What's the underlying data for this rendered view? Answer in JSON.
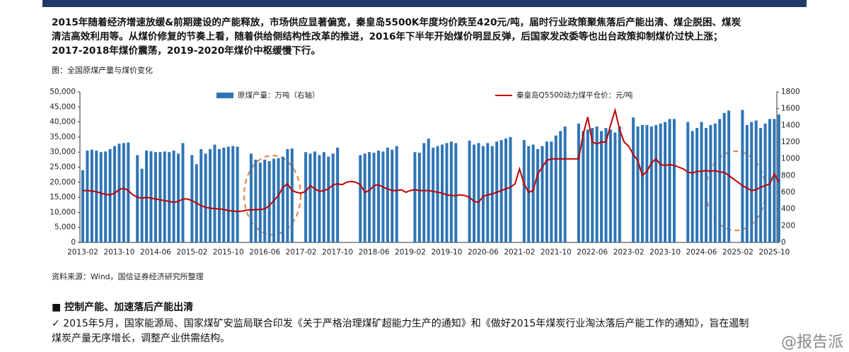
{
  "paragraph": {
    "lines": [
      "2015年随着经济增速放缓&前期建设的产能释放，市场供应显著偏宽，秦皇岛5500K年度均价跌至420元/吨，届时行业政策聚焦落后产能出清、煤企脱困、煤炭",
      "清洁高效利用等。从煤价修复的节奏上看，随着供给侧结构性改革的推进，2016年下半年开始煤价明显反弹，后国家发改委等也出台政策抑制煤价过快上涨；",
      "2017-2018年煤价震荡，2019-2020年煤价中枢缓慢下行。"
    ]
  },
  "figure_caption": "图：全国原煤产量与煤价变化",
  "chart_data": {
    "type": "bar-line",
    "categories": [
      "2013-02",
      null,
      null,
      null,
      null,
      null,
      null,
      null,
      "2013-10",
      null,
      null,
      null,
      null,
      null,
      null,
      null,
      "2014-06",
      null,
      null,
      null,
      null,
      null,
      null,
      null,
      "2015-02",
      null,
      null,
      null,
      null,
      null,
      null,
      null,
      "2015-10",
      null,
      null,
      null,
      null,
      null,
      null,
      null,
      "2016-06",
      null,
      null,
      null,
      null,
      null,
      null,
      null,
      "2017-02",
      null,
      null,
      null,
      null,
      null,
      null,
      null,
      "2017-10",
      null,
      null,
      null,
      null,
      null,
      null,
      null,
      "2018-06",
      null,
      null,
      null,
      null,
      null,
      null,
      null,
      "2019-02",
      null,
      null,
      null,
      null,
      null,
      null,
      null,
      "2019-10",
      null,
      null,
      null,
      null,
      null,
      null,
      null,
      "2020-06",
      null,
      null,
      null,
      null,
      null,
      null,
      null,
      "2021-02",
      null,
      null,
      null,
      null,
      null,
      null,
      null,
      "2021-10",
      null,
      null,
      null,
      null,
      null,
      null,
      null,
      "2022-06",
      null,
      null,
      null,
      null,
      null,
      null,
      null,
      "2023-02",
      null,
      null,
      null,
      null,
      null,
      null,
      null,
      "2023-10",
      null,
      null,
      null,
      null,
      null,
      null,
      null,
      "2024-06",
      null,
      null,
      null,
      null,
      null,
      null,
      null,
      "2025-02",
      null,
      null,
      null,
      null,
      null,
      null,
      null,
      "2025-10",
      null
    ],
    "series": [
      {
        "name": "原煤产量：万吨（右轴）",
        "kind": "bar",
        "color": "#2e75b6",
        "values": [
          24000,
          30500,
          30800,
          30500,
          30000,
          30200,
          31000,
          32000,
          32800,
          33000,
          33200,
          null,
          29000,
          24500,
          30500,
          30300,
          30000,
          30000,
          30200,
          30000,
          30500,
          29500,
          33000,
          null,
          29000,
          26000,
          31000,
          29500,
          31000,
          32500,
          31000,
          31500,
          31800,
          32000,
          31800,
          null,
          null,
          29500,
          27500,
          26500,
          27500,
          27000,
          27800,
          28000,
          28500,
          31000,
          31200,
          null,
          null,
          30000,
          29500,
          30200,
          29000,
          30000,
          28500,
          29500,
          31500,
          null,
          null,
          null,
          null,
          29000,
          29500,
          30000,
          29800,
          30500,
          30200,
          31500,
          30800,
          32000,
          null,
          null,
          null,
          30000,
          29800,
          33000,
          34500,
          31500,
          32000,
          32500,
          33000,
          33500,
          33000,
          null,
          null,
          33800,
          32500,
          33000,
          32000,
          33000,
          32000,
          33500,
          34000,
          34500,
          35000,
          null,
          null,
          34000,
          32000,
          32500,
          31000,
          32000,
          33500,
          33500,
          35500,
          37000,
          38500,
          null,
          null,
          39500,
          37000,
          37500,
          38000,
          38500,
          37000,
          38000,
          37500,
          36500,
          38500,
          null,
          null,
          41500,
          38500,
          39000,
          39000,
          38500,
          39000,
          39500,
          40000,
          41000,
          41000,
          null,
          null,
          40000,
          37000,
          38000,
          40000,
          38000,
          39000,
          39500,
          41000,
          43000,
          43800,
          null,
          null,
          44000,
          39000,
          40000,
          40500,
          38000,
          39500,
          41000,
          41000,
          42500
        ]
      },
      {
        "name": "秦皇岛Q5500动力煤平仓价：元/吨",
        "kind": "line",
        "axis": "y2",
        "color": "#c00000",
        "values": [
          620,
          620,
          615,
          605,
          590,
          575,
          570,
          590,
          630,
          650,
          620,
          570,
          540,
          530,
          540,
          530,
          520,
          510,
          500,
          490,
          480,
          490,
          520,
          520,
          500,
          470,
          440,
          420,
          410,
          405,
          400,
          395,
          380,
          375,
          370,
          375,
          385,
          390,
          390,
          395,
          400,
          440,
          500,
          560,
          660,
          700,
          620,
          600,
          590,
          610,
          680,
          640,
          610,
          620,
          640,
          690,
          700,
          690,
          720,
          730,
          720,
          690,
          600,
          620,
          680,
          690,
          660,
          640,
          620,
          620,
          630,
          600,
          620,
          630,
          620,
          620,
          620,
          610,
          600,
          590,
          570,
          560,
          560,
          570,
          560,
          540,
          490,
          480,
          550,
          570,
          580,
          600,
          620,
          640,
          660,
          700,
          880,
          700,
          600,
          620,
          820,
          900,
          980,
          1000,
          1000,
          1000,
          1000,
          1000,
          1000,
          1000,
          1300,
          1500,
          1200,
          1180,
          1200,
          1200,
          1400,
          1580,
          1350,
          1200,
          1150,
          1050,
          980,
          800,
          850,
          950,
          1000,
          930,
          920,
          930,
          920,
          900,
          880,
          840,
          830,
          850,
          850,
          860,
          850,
          860,
          840,
          840,
          800,
          760,
          720,
          680,
          650,
          620,
          630,
          660,
          680,
          700,
          820,
          720
        ]
      }
    ],
    "ylim": [
      0,
      50000
    ],
    "yticks": [
      0,
      {
        "value": 5000,
        "label": "5,000"
      },
      {
        "value": 10000,
        "label": "10,000"
      },
      {
        "value": 15000,
        "label": "15,000"
      },
      {
        "value": 20000,
        "label": "20,000"
      },
      {
        "value": 25000,
        "label": "25,000"
      },
      {
        "value": 30000,
        "label": "30,000"
      },
      {
        "value": 35000,
        "label": "35,000"
      },
      {
        "value": 40000,
        "label": "40,000"
      },
      {
        "value": 45000,
        "label": "45,000"
      },
      {
        "value": 50000,
        "label": "50,000"
      }
    ],
    "y2lim": [
      0,
      1800
    ],
    "y2ticks": [
      0,
      200,
      400,
      600,
      800,
      1000,
      1200,
      1400,
      1600,
      1800
    ]
  },
  "source": "资料来源：Wind，国信证券经济研究所整理",
  "section": "■  控制产能、加速落后产能出清",
  "bullet": {
    "lines": [
      "✓ 2015年5月，国家能源局、国家煤矿安监局联合印发《关于严格治理煤矿超能力生产的通知》和《做好2015年煤炭行业淘汰落后产能工作的通知》，旨在遏制",
      "煤炭产量无序增长，调整产业供需结构。"
    ]
  },
  "watermark": "@报告派"
}
